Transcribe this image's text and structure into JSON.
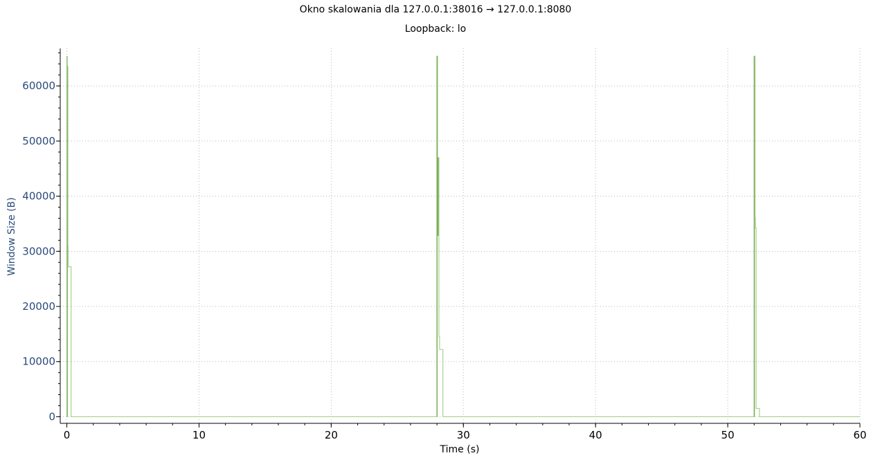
{
  "chart_data": {
    "type": "line",
    "title": "Okno skalowania dla 127.0.0.1:38016 → 127.0.0.1:8080",
    "subtitle": "Loopback: lo",
    "xlabel": "Time (s)",
    "ylabel": "Window Size (B)",
    "xlim": [
      -0.5,
      60
    ],
    "ylim": [
      -1200,
      66800
    ],
    "xticks": [
      0,
      10,
      20,
      30,
      40,
      50,
      60
    ],
    "yticks": [
      0,
      10000,
      20000,
      30000,
      40000,
      50000,
      60000
    ],
    "grid": true,
    "colors": {
      "axis": "#000000",
      "tick_label_x": "#000000",
      "tick_label_y": "#2a4a7b",
      "ylabel": "#2a4a7b",
      "grid": "#b8b8b8",
      "series_light": "#a9d18e",
      "series_dark": "#6fa84a"
    },
    "series": [
      {
        "style": "step",
        "color": "#a9d18e",
        "points": [
          [
            0.0,
            0
          ],
          [
            0.05,
            63500
          ],
          [
            0.08,
            31000
          ],
          [
            0.1,
            27200
          ],
          [
            0.3,
            27200
          ],
          [
            0.32,
            0
          ],
          [
            28.0,
            0
          ],
          [
            28.02,
            65400
          ],
          [
            28.05,
            33000
          ],
          [
            28.1,
            47000
          ],
          [
            28.15,
            14500
          ],
          [
            28.2,
            12200
          ],
          [
            28.4,
            12200
          ],
          [
            28.45,
            0
          ],
          [
            52.0,
            0
          ],
          [
            52.03,
            65400
          ],
          [
            52.07,
            36000
          ],
          [
            52.1,
            34200
          ],
          [
            52.15,
            1500
          ],
          [
            52.35,
            1500
          ],
          [
            52.4,
            0
          ],
          [
            60.0,
            0
          ]
        ]
      },
      {
        "style": "spike",
        "color": "#6fa84a",
        "points": [
          [
            0.02,
            0
          ],
          [
            0.02,
            65400
          ],
          [
            28.0,
            0
          ],
          [
            28.0,
            65400
          ],
          [
            28.08,
            32800
          ],
          [
            28.08,
            47000
          ],
          [
            52.0,
            0
          ],
          [
            52.0,
            65400
          ]
        ]
      }
    ]
  }
}
